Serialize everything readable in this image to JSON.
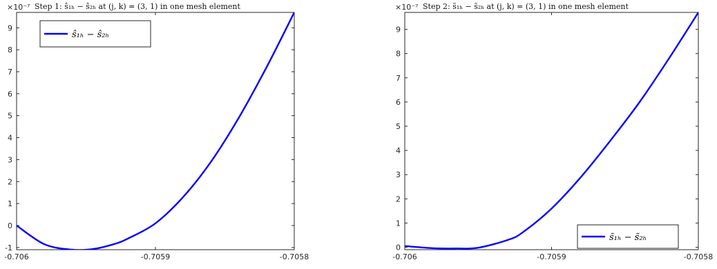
{
  "chart_data": [
    {
      "type": "line",
      "title": "Step 1: ŝ_{1h}^{j,k,ĩ} − ŝ_{2h}^{j,k,ĩ} at (j,k) = (3,1) in one mesh element",
      "title_display": "Step 1: ŝ₁ₕ − ŝ₂ₕ at (j, k) = (3, 1) in one mesh element",
      "exponent_label": "×10⁻⁷",
      "xlabel": "",
      "ylabel": "",
      "xlim": [
        -0.706,
        -0.7058
      ],
      "ylim": [
        -1.1,
        9.7
      ],
      "x_ticks": [
        -0.706,
        -0.7059,
        -0.7058
      ],
      "x_tick_labels": [
        "-0.706",
        "-0.7059",
        "-0.7058"
      ],
      "y_ticks": [
        -1,
        0,
        1,
        2,
        3,
        4,
        5,
        6,
        7,
        8,
        9
      ],
      "y_tick_labels": [
        "-1",
        "0",
        "1",
        "2",
        "3",
        "4",
        "5",
        "6",
        "7",
        "8",
        "9"
      ],
      "legend_position": "top-left",
      "grid": false,
      "series": [
        {
          "name": "ŝ₁ₕ − ŝ₂ₕ",
          "legend_text": "ŝ₁ₕ − ŝ₂ₕ",
          "color": "#0000ff",
          "x": [
            -0.706,
            -0.70598,
            -0.70596,
            -0.705945,
            -0.70593,
            -0.70592,
            -0.7059,
            -0.70588,
            -0.70586,
            -0.70584,
            -0.70582,
            -0.7058
          ],
          "y": [
            0.0,
            -0.85,
            -1.1,
            -1.07,
            -0.85,
            -0.6,
            0.1,
            1.3,
            2.9,
            4.9,
            7.2,
            9.7
          ]
        }
      ]
    },
    {
      "type": "line",
      "title": "Step 2: s̃_{1h}^{j,k,ĩ} − s̃_{2h}^{j,k,ĩ} at (j,k) = (3,1) in one mesh element",
      "title_display": "Step 2: s̃₁ₕ − s̃₂ₕ at (j, k) = (3, 1) in one mesh element",
      "exponent_label": "×10⁻⁷",
      "xlabel": "",
      "ylabel": "",
      "xlim": [
        -0.706,
        -0.7058
      ],
      "ylim": [
        -0.1,
        9.7
      ],
      "x_ticks": [
        -0.706,
        -0.7059,
        -0.7058
      ],
      "x_tick_labels": [
        "-0.706",
        "-0.7059",
        "-0.7058"
      ],
      "y_ticks": [
        0,
        1,
        2,
        3,
        4,
        5,
        6,
        7,
        8,
        9
      ],
      "y_tick_labels": [
        "0",
        "1",
        "2",
        "3",
        "4",
        "5",
        "6",
        "7",
        "8",
        "9"
      ],
      "legend_position": "bottom-right",
      "grid": false,
      "series": [
        {
          "name": "s̃₁ₕ − s̃₂ₕ",
          "legend_text": "s̃₁ₕ − s̃₂ₕ",
          "color": "#0000ff",
          "x": [
            -0.706,
            -0.70598,
            -0.705965,
            -0.70595,
            -0.70593,
            -0.70592,
            -0.7059,
            -0.70588,
            -0.70586,
            -0.70584,
            -0.70582,
            -0.7058
          ],
          "y": [
            0.05,
            -0.04,
            -0.05,
            -0.02,
            0.3,
            0.6,
            1.6,
            2.9,
            4.4,
            6.0,
            7.8,
            9.7
          ]
        }
      ]
    }
  ]
}
